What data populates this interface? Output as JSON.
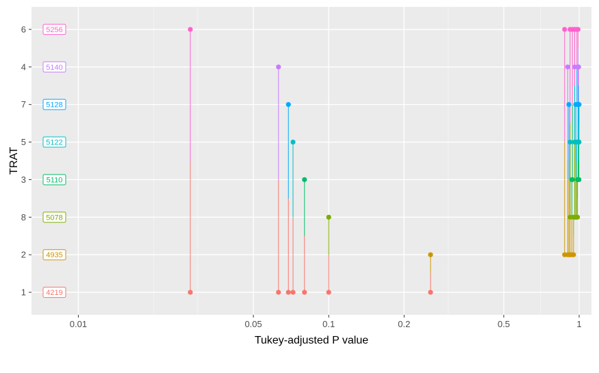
{
  "chart_data": {
    "type": "scatter",
    "title": "",
    "xlabel": "Tukey-adjusted P value",
    "ylabel": "TRAT",
    "x_scale": "log10",
    "xlim": [
      0.0065,
      1.12
    ],
    "x_ticks": [
      0.01,
      0.05,
      0.1,
      0.2,
      0.5,
      1
    ],
    "x_tick_labels": [
      "0.01",
      "0.05",
      "0.1",
      "0.2",
      "0.5",
      "1"
    ],
    "x_minor_ticks": [
      0.02,
      0.03,
      0.3,
      0.7
    ],
    "y_categories": [
      "1",
      "2",
      "8",
      "3",
      "5",
      "7",
      "4",
      "6"
    ],
    "y_labels": [
      {
        "category": "1",
        "label": "4219",
        "color": "#F8766D"
      },
      {
        "category": "2",
        "label": "4935",
        "color": "#CD9600"
      },
      {
        "category": "8",
        "label": "5078",
        "color": "#7CAE00"
      },
      {
        "category": "3",
        "label": "5110",
        "color": "#00BE67"
      },
      {
        "category": "5",
        "label": "5122",
        "color": "#00BFC4"
      },
      {
        "category": "7",
        "label": "5128",
        "color": "#00A9FF"
      },
      {
        "category": "4",
        "label": "5140",
        "color": "#C77CFF"
      },
      {
        "category": "6",
        "label": "5256",
        "color": "#FF61CC"
      }
    ],
    "grid": true,
    "background": "#EBEBEB",
    "comparisons": [
      {
        "from": "1",
        "to": "6",
        "p": 0.028
      },
      {
        "from": "1",
        "to": "4",
        "p": 0.063
      },
      {
        "from": "1",
        "to": "7",
        "p": 0.069
      },
      {
        "from": "1",
        "to": "5",
        "p": 0.072
      },
      {
        "from": "1",
        "to": "3",
        "p": 0.08
      },
      {
        "from": "1",
        "to": "8",
        "p": 0.1
      },
      {
        "from": "1",
        "to": "2",
        "p": 0.255
      },
      {
        "from": "2",
        "to": "6",
        "p": 0.875
      },
      {
        "from": "2",
        "to": "4",
        "p": 0.9
      },
      {
        "from": "2",
        "to": "7",
        "p": 0.91
      },
      {
        "from": "2",
        "to": "5",
        "p": 0.92
      },
      {
        "from": "2",
        "to": "3",
        "p": 0.935
      },
      {
        "from": "2",
        "to": "8",
        "p": 0.95
      },
      {
        "from": "8",
        "to": "6",
        "p": 0.92
      },
      {
        "from": "8",
        "to": "4",
        "p": 0.96
      },
      {
        "from": "8",
        "to": "7",
        "p": 0.97
      },
      {
        "from": "8",
        "to": "5",
        "p": 0.975
      },
      {
        "from": "8",
        "to": "3",
        "p": 0.985
      },
      {
        "from": "3",
        "to": "6",
        "p": 0.94
      },
      {
        "from": "3",
        "to": "4",
        "p": 0.99
      },
      {
        "from": "3",
        "to": "7",
        "p": 0.995
      },
      {
        "from": "3",
        "to": "5",
        "p": 0.998
      },
      {
        "from": "5",
        "to": "6",
        "p": 0.96
      },
      {
        "from": "5",
        "to": "4",
        "p": 0.99
      },
      {
        "from": "5",
        "to": "7",
        "p": 0.999
      },
      {
        "from": "7",
        "to": "6",
        "p": 0.98
      },
      {
        "from": "7",
        "to": "4",
        "p": 0.995
      },
      {
        "from": "4",
        "to": "6",
        "p": 0.99
      }
    ]
  }
}
